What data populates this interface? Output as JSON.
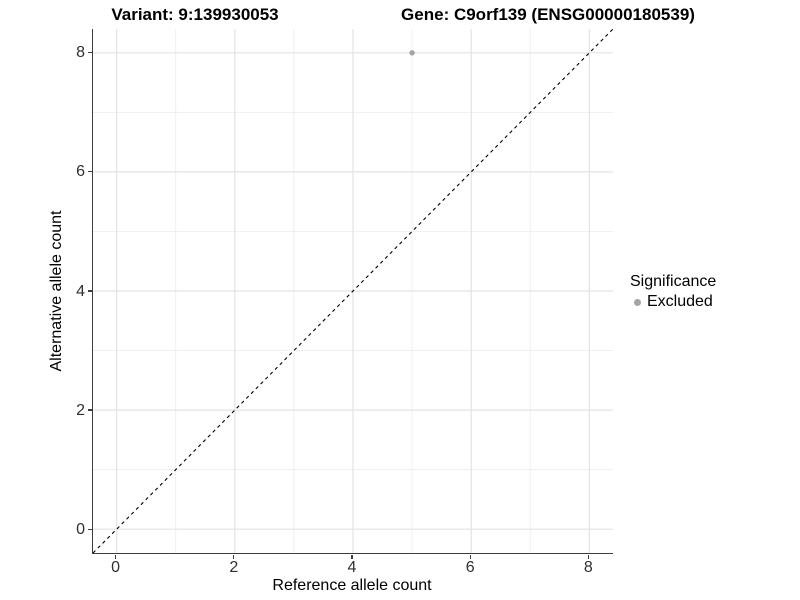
{
  "chart_data": {
    "type": "scatter",
    "title_left": "Variant: 9:139930053",
    "title_right": "Gene: C9orf139 (ENSG00000180539)",
    "xlabel": "Reference allele count",
    "ylabel": "Alternative allele count",
    "xlim": [
      -0.4,
      8.4
    ],
    "ylim": [
      -0.4,
      8.4
    ],
    "x_ticks": [
      0,
      2,
      4,
      6,
      8
    ],
    "y_ticks": [
      0,
      2,
      4,
      6,
      8
    ],
    "grid_major": [
      0,
      2,
      4,
      6,
      8
    ],
    "grid_minor": [
      1,
      3,
      5,
      7
    ],
    "points": [
      {
        "x": 5,
        "y": 8,
        "series": "Excluded"
      }
    ],
    "reference_line": {
      "style": "dashed",
      "equation": "y = x"
    },
    "legend": {
      "title": "Significance",
      "position": "right",
      "entries": [
        {
          "label": "Excluded",
          "color": "#a5a5a5"
        }
      ]
    },
    "colors": {
      "point": "#a5a5a5",
      "grid_major": "#e3e3e3",
      "grid_minor": "#eeeeee",
      "axis_line": "#3d3d3d",
      "tick_text": "#303030",
      "reference_line": "#000000"
    }
  }
}
